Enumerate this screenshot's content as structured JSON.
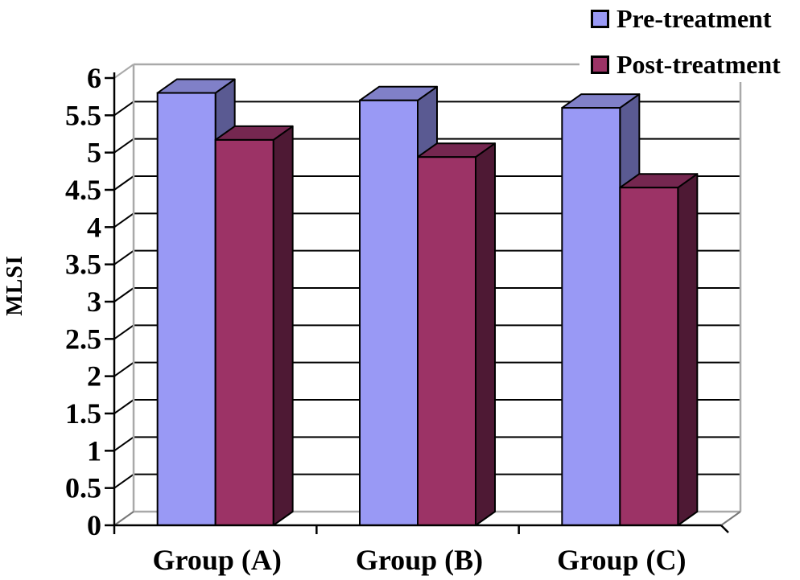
{
  "chart_data": {
    "type": "bar",
    "variant": "3d-clustered-column",
    "title": "",
    "xlabel": "",
    "ylabel": "MLSI",
    "ylim": [
      0,
      6
    ],
    "ytick_step": 0.5,
    "yticks": [
      "0",
      "0.5",
      "1",
      "1.5",
      "2",
      "2.5",
      "3",
      "3.5",
      "4",
      "4.5",
      "5",
      "5.5",
      "6"
    ],
    "categories": [
      "Group (A)",
      "Group (B)",
      "Group (C)"
    ],
    "series": [
      {
        "name": "Pre-treatment",
        "values": [
          5.8,
          5.7,
          5.6
        ],
        "colors": {
          "front": "#9999F5",
          "top": "#8080C8",
          "side": "#5A5A92"
        }
      },
      {
        "name": "Post-treatment",
        "values": [
          5.17,
          4.94,
          4.53
        ],
        "colors": {
          "front": "#9C3366",
          "top": "#752750",
          "side": "#4E1934"
        }
      }
    ],
    "grid": true,
    "gridline_color": "#000000",
    "wall_edge_color": "#A9A9A9",
    "axis_color": "#000000",
    "text_color": "#000000",
    "legend_position": "top-right"
  },
  "legend": {
    "items": [
      {
        "label": "Pre-treatment"
      },
      {
        "label": "Post-treatment"
      }
    ]
  }
}
